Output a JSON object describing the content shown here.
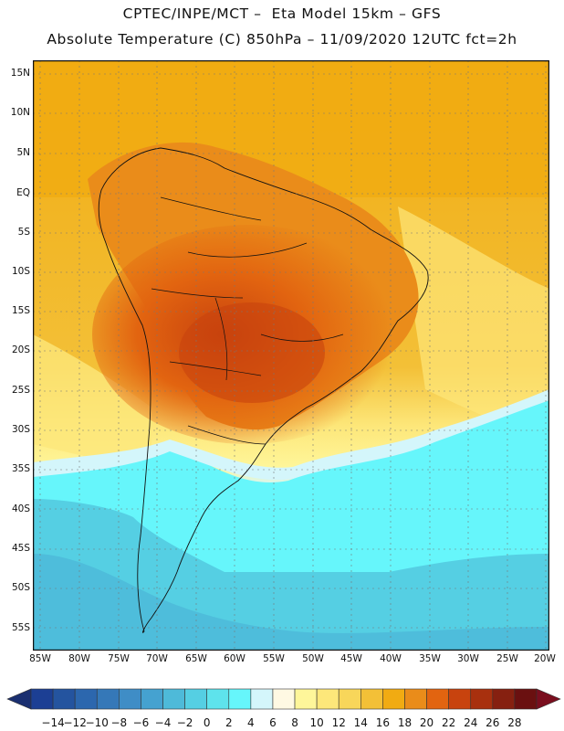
{
  "header": {
    "line1": "CPTEC/INPE/MCT –  Eta Model 15km – GFS",
    "line2": "Absolute Temperature (C) 850hPa – 11/09/2020 12UTC fct=2h"
  },
  "map": {
    "lat_labels": [
      "15N",
      "10N",
      "5N",
      "EQ",
      "5S",
      "10S",
      "15S",
      "20S",
      "25S",
      "30S",
      "35S",
      "40S",
      "45S",
      "50S",
      "55S"
    ],
    "lon_labels": [
      "85W",
      "80W",
      "75W",
      "70W",
      "65W",
      "60W",
      "55W",
      "50W",
      "45W",
      "40W",
      "35W",
      "30W",
      "25W",
      "20W"
    ],
    "region": "South America"
  },
  "colorbar": {
    "labels": [
      "-14",
      "-12",
      "-10",
      "-8",
      "-6",
      "-4",
      "-2",
      "0",
      "2",
      "4",
      "6",
      "8",
      "10",
      "12",
      "14",
      "16",
      "18",
      "20",
      "22",
      "24",
      "26",
      "28"
    ],
    "colors": [
      "#1c3f94",
      "#24549f",
      "#2c67ae",
      "#3578b8",
      "#3f8dc6",
      "#45a2d0",
      "#4ebad9",
      "#55cfe3",
      "#5ee3ec",
      "#66f6fb",
      "#d4f6fb",
      "#fff9e3",
      "#fef69a",
      "#fde77a",
      "#f8d65a",
      "#f3c037",
      "#f1ab12",
      "#ea8c1a",
      "#e26410",
      "#c8430e",
      "#a8300e",
      "#862010",
      "#6a1010"
    ],
    "low_arrow_color": "#1a2f70",
    "high_arrow_color": "#7a0e1e"
  }
}
